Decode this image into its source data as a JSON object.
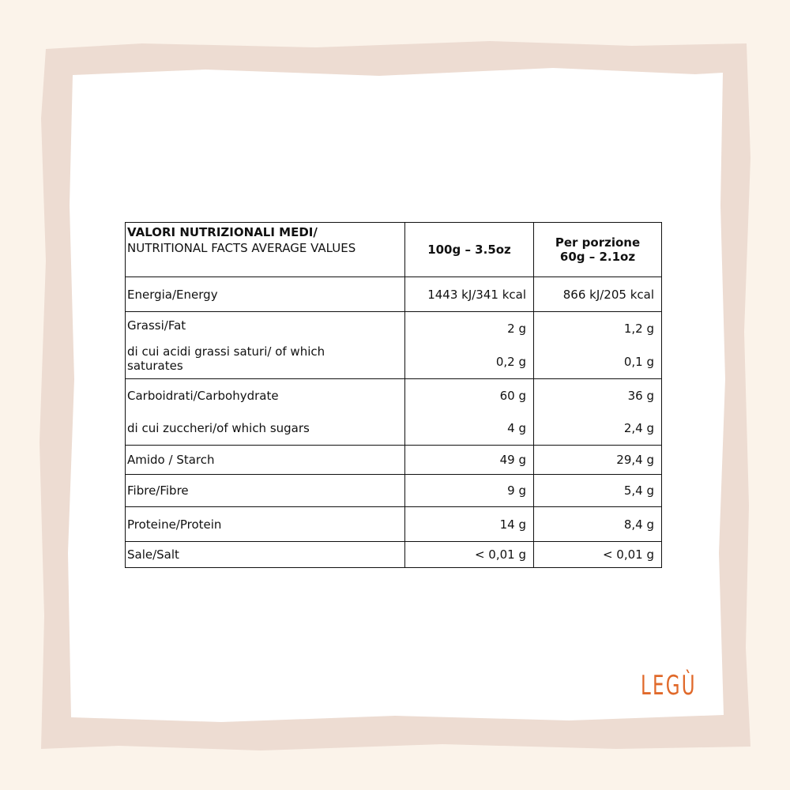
{
  "table": {
    "header": {
      "nutrient": {
        "title": "VALORI NUTRIZIONALI MEDI/",
        "subtitle": "NUTRITIONAL FACTS AVERAGE VALUES"
      },
      "per_100g": "100g – 3.5oz",
      "per_portion": [
        "Per porzione",
        "60g – 2.1oz"
      ]
    },
    "groups": [
      [
        [
          "Energia/Energy",
          "1443 kJ/341 kcal",
          "866 kJ/205 kcal"
        ]
      ],
      [
        [
          "Grassi/Fat",
          "2 g",
          "1,2 g"
        ],
        [
          "di cui acidi grassi saturi/ of which saturates",
          "0,2 g",
          "0,1 g"
        ]
      ],
      [
        [
          "Carboidrati/Carbohydrate",
          "60 g",
          "36 g"
        ],
        [
          "di cui zuccheri/of which sugars",
          "4 g",
          "2,4 g"
        ]
      ],
      [
        [
          "Amido / Starch",
          "49 g",
          "29,4 g"
        ]
      ],
      [
        [
          "Fibre/Fibre",
          "9 g",
          "5,4 g"
        ]
      ],
      [
        [
          "Proteine/Protein",
          "14 g",
          "8,4 g"
        ]
      ],
      [
        [
          "Sale/Salt",
          "< 0,01 g",
          "< 0,01 g"
        ]
      ]
    ]
  },
  "logo": "LEGÙ"
}
